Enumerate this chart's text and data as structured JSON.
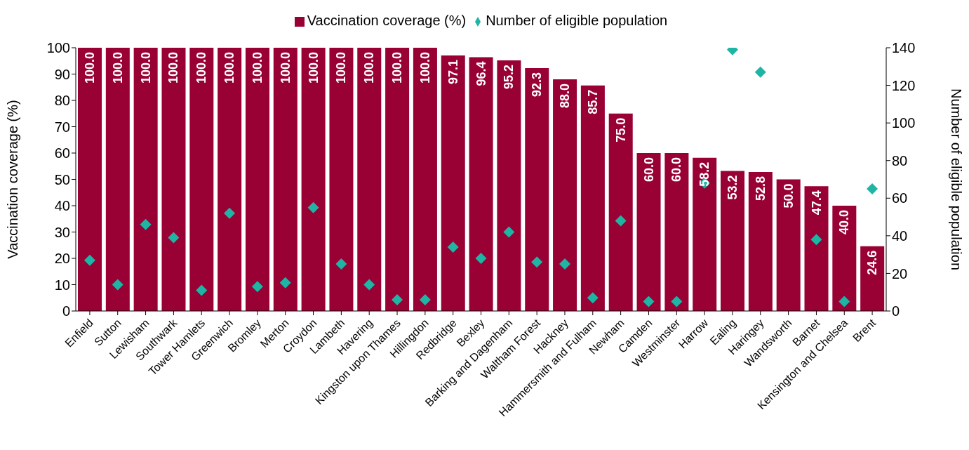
{
  "chart_data": {
    "type": "bar",
    "ylabel": "Vaccination coverage (%)",
    "y2label": "Number of eligible population",
    "categories": [
      "Enfield",
      "Sutton",
      "Lewisham",
      "Southwark",
      "Tower Hamlets",
      "Greenwich",
      "Bromley",
      "Merton",
      "Croydon",
      "Lambeth",
      "Havering",
      "Kingston upon Thames",
      "Hillingdon",
      "Redbridge",
      "Bexley",
      "Barking and Dagenham",
      "Waltham Forest",
      "Hackney",
      "Hammersmith and Fulham",
      "Newham",
      "Camden",
      "Westminster",
      "Harrow",
      "Ealing",
      "Haringey",
      "Wandsworth",
      "Barnet",
      "Kensington and Chelsea",
      "Brent"
    ],
    "series": [
      {
        "name": "Vaccination coverage (%)",
        "color": "#990033",
        "values": [
          100,
          100,
          100,
          100,
          100,
          100,
          100,
          100,
          100,
          100,
          100,
          100,
          100,
          97.1,
          96.4,
          95.2,
          92.3,
          88.0,
          85.7,
          75.0,
          60.0,
          60.0,
          58.2,
          53.2,
          52.8,
          50.0,
          47.4,
          40.0,
          24.6
        ],
        "value_labels": [
          "100.0",
          "100.0",
          "100.0",
          "100.0",
          "100.0",
          "100.0",
          "100.0",
          "100.0",
          "100.0",
          "100.0",
          "100.0",
          "100.0",
          "100.0",
          "97.1",
          "96.4",
          "95.2",
          "92.3",
          "88.0",
          "85.7",
          "75.0",
          "60.0",
          "60.0",
          "58.2",
          "53.2",
          "52.8",
          "50.0",
          "47.4",
          "40.0",
          "24.6"
        ]
      },
      {
        "name": "Number of eligible population",
        "type": "scatter",
        "axis": "y2",
        "marker": "diamond",
        "color": "#1fb5a5",
        "values": [
          27,
          14,
          46,
          39,
          11,
          52,
          13,
          15,
          55,
          25,
          14,
          6,
          6,
          34,
          28,
          42,
          26,
          25,
          7,
          48,
          5,
          5,
          68,
          139,
          127,
          null,
          38,
          5,
          65
        ]
      }
    ],
    "ylim": [
      0,
      100
    ],
    "yticks": [
      0,
      10,
      20,
      30,
      40,
      50,
      60,
      70,
      80,
      90,
      100
    ],
    "y2lim": [
      0,
      140
    ],
    "y2ticks": [
      0,
      20,
      40,
      60,
      80,
      100,
      120,
      140
    ],
    "grid": false,
    "legend": "top"
  }
}
